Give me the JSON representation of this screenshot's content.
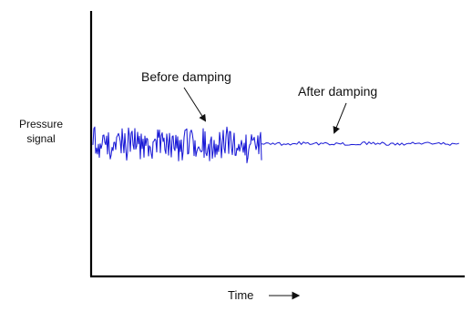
{
  "chart_data": {
    "type": "line",
    "title": "",
    "xlabel": "Time",
    "ylabel_lines": [
      "Pressure",
      "signal"
    ],
    "axes": {
      "y_arrow": true,
      "x_arrow": true,
      "grid": false,
      "ticks": false
    },
    "x_range": [
      0,
      100
    ],
    "y_range": [
      -1,
      1
    ],
    "baseline_level": 0.0,
    "segments": [
      {
        "label": "Before damping",
        "x_start": 0,
        "x_end": 46,
        "amplitude": 0.13,
        "style": "high-amplitude-noise"
      },
      {
        "label": "After damping",
        "x_start": 46,
        "x_end": 100,
        "amplitude": 0.012,
        "style": "low-amplitude-noise"
      }
    ],
    "annotations": [
      {
        "text": "Before damping",
        "arrow_to_segment": 0,
        "arrow_target_x": 31
      },
      {
        "text": "After damping",
        "arrow_to_segment": 1,
        "arrow_target_x": 67
      }
    ],
    "series_color": "#1a1ad6",
    "axis_color": "#000000"
  }
}
